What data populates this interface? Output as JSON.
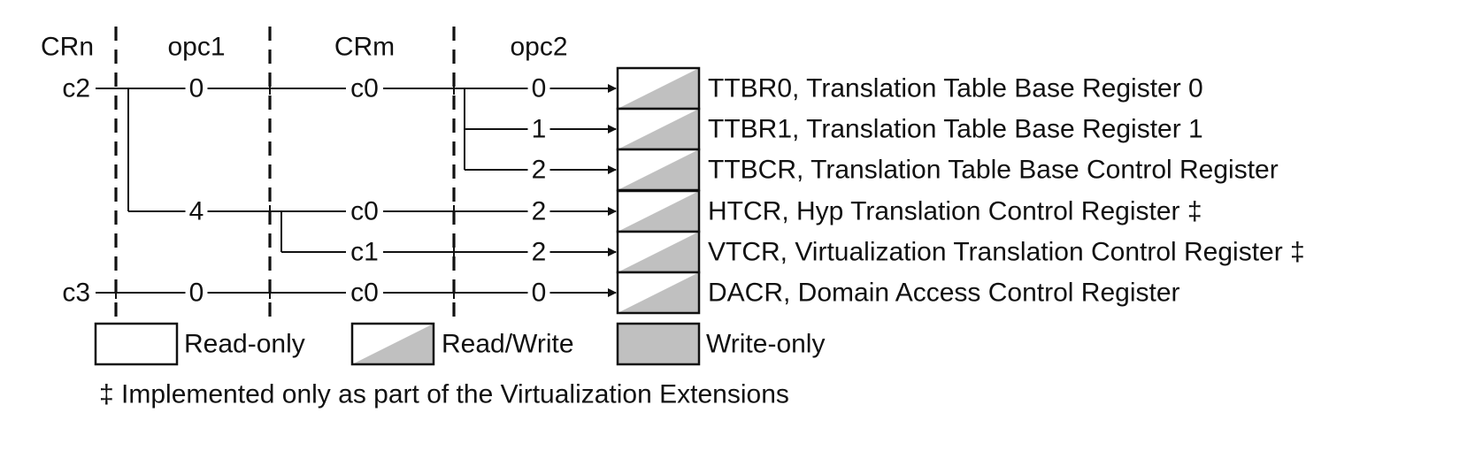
{
  "headers": [
    "CRn",
    "opc1",
    "CRm",
    "opc2"
  ],
  "crn_labels": [
    {
      "label": "c2",
      "row": 0
    },
    {
      "label": "c3",
      "row": 5
    }
  ],
  "opc1_labels": [
    {
      "label": "0",
      "row": 0
    },
    {
      "label": "4",
      "row": 3
    },
    {
      "label": "0",
      "row": 5
    }
  ],
  "crm_labels": [
    {
      "label": "c0",
      "row": 0
    },
    {
      "label": "c0",
      "row": 3
    },
    {
      "label": "c1",
      "row": 4
    },
    {
      "label": "c0",
      "row": 5
    }
  ],
  "registers": [
    {
      "opc2": "0",
      "name": "TTBR0, Translation Table Base Register 0",
      "access": "read-write"
    },
    {
      "opc2": "1",
      "name": "TTBR1, Translation Table Base Register 1",
      "access": "read-write"
    },
    {
      "opc2": "2",
      "name": "TTBCR, Translation Table Base Control Register",
      "access": "read-write"
    },
    {
      "opc2": "2",
      "name": "HTCR, Hyp Translation Control Register ‡",
      "access": "read-write"
    },
    {
      "opc2": "2",
      "name": "VTCR, Virtualization Translation Control Register ‡",
      "access": "read-write"
    },
    {
      "opc2": "0",
      "name": "DACR, Domain Access Control Register",
      "access": "read-write"
    }
  ],
  "legend": [
    {
      "type": "read-only",
      "label": "Read-only"
    },
    {
      "type": "read-write",
      "label": "Read/Write"
    },
    {
      "type": "write-only",
      "label": "Write-only"
    }
  ],
  "footnote": "‡ Implemented only as part of the Virtualization Extensions",
  "colors": {
    "line": "#111111",
    "fill_gray": "#c0c0c0",
    "background": "#ffffff"
  }
}
